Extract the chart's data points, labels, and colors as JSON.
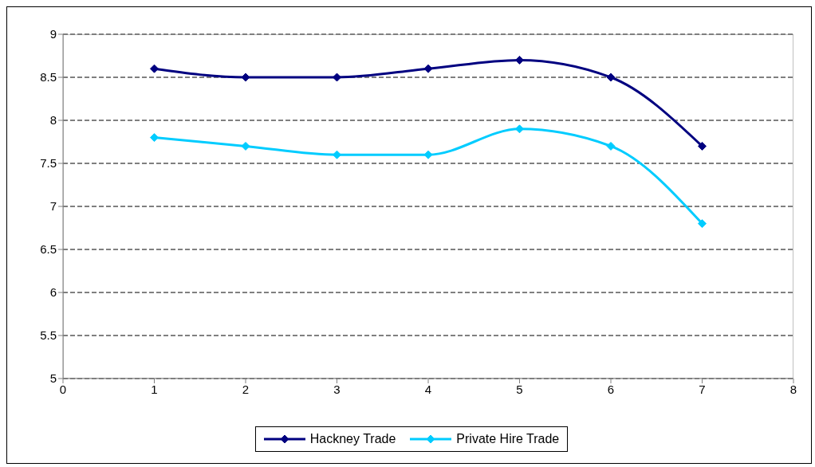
{
  "chart_data": {
    "type": "line",
    "x": [
      1,
      2,
      3,
      4,
      5,
      6,
      7
    ],
    "series": [
      {
        "name": "Hackney Trade",
        "color": "#000080",
        "values": [
          8.6,
          8.5,
          8.5,
          8.6,
          8.7,
          8.5,
          7.7
        ]
      },
      {
        "name": "Private Hire Trade",
        "color": "#00ccff",
        "values": [
          7.8,
          7.7,
          7.6,
          7.6,
          7.9,
          7.7,
          6.8
        ]
      }
    ],
    "xlim": [
      0,
      8
    ],
    "xticks": [
      0,
      1,
      2,
      3,
      4,
      5,
      6,
      7,
      8
    ],
    "ylim": [
      5,
      9
    ],
    "yticks": [
      5,
      5.5,
      6,
      6.5,
      7,
      7.5,
      8,
      8.5,
      9
    ],
    "grid": "y",
    "legend": "bottom",
    "marker": "diamond",
    "line_style": "solid"
  }
}
